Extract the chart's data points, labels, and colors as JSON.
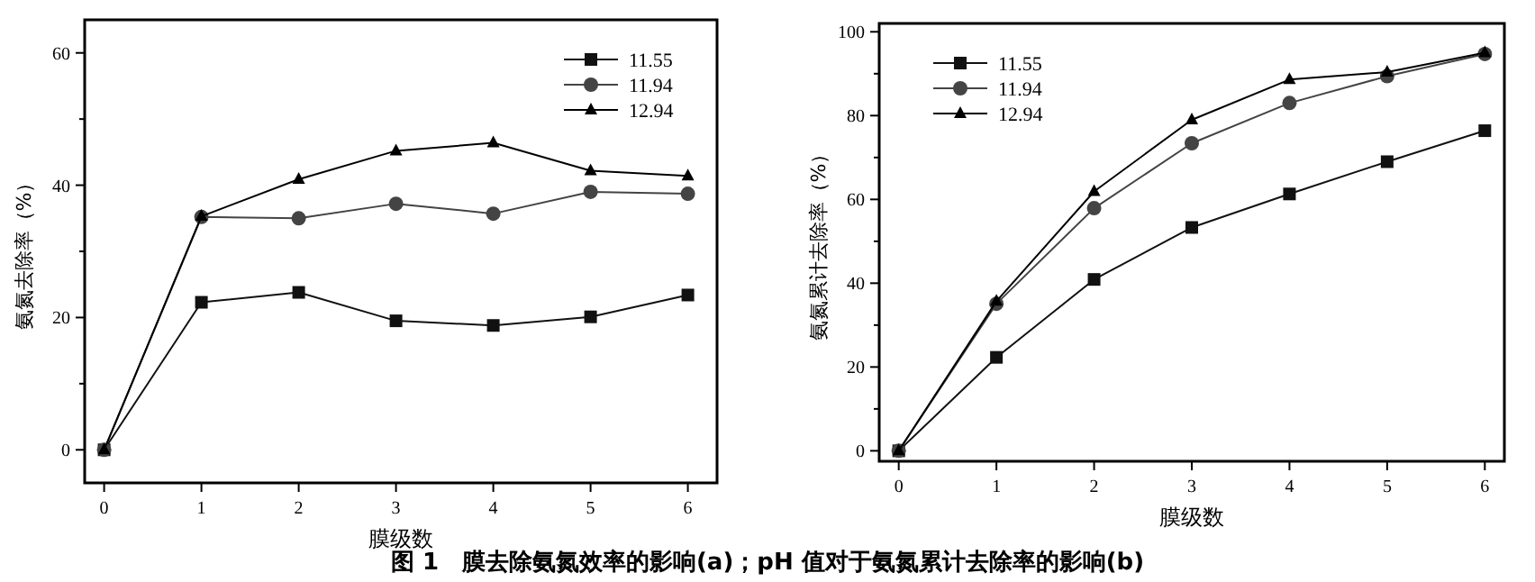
{
  "chart_data": [
    {
      "type": "line",
      "xlabel": "膜级数",
      "ylabel": "氨氮去除率（%）",
      "x": [
        0,
        1,
        2,
        3,
        4,
        5,
        6
      ],
      "xlim": [
        -0.2,
        6.3
      ],
      "xticks": [
        0,
        1,
        2,
        3,
        4,
        5,
        6
      ],
      "ylim": [
        -5,
        65
      ],
      "yticks": [
        0,
        {
          "value": 10,
          "label": null
        },
        20,
        {
          "value": 30,
          "label": null
        },
        40,
        {
          "value": 50,
          "label": null
        },
        60
      ],
      "legend": "top right",
      "annotations": [
        "图 1　膜去除氨氮效率的影响(a)；pH 值对于氨氮累计去除率的影响(b)"
      ],
      "series": [
        {
          "name": "11.55",
          "color": "#111111",
          "marker": "square",
          "values": [
            0,
            22.3,
            23.8,
            19.5,
            18.8,
            20.1,
            23.4
          ]
        },
        {
          "name": "11.94",
          "color": "#444444",
          "marker": "circle",
          "values": [
            0,
            35.2,
            35.0,
            37.2,
            35.7,
            39.0,
            38.7
          ]
        },
        {
          "name": "12.94",
          "color": "#000000",
          "marker": "triangle",
          "values": [
            0,
            35.3,
            40.9,
            45.2,
            46.4,
            42.2,
            41.4
          ]
        }
      ]
    },
    {
      "type": "line",
      "xlabel": "膜级数",
      "ylabel": "氨氮累计去除率（%）",
      "x": [
        0,
        1,
        2,
        3,
        4,
        5,
        6
      ],
      "xlim": [
        -0.2,
        6.2
      ],
      "xticks": [
        0,
        1,
        2,
        3,
        4,
        5,
        6
      ],
      "ylim": [
        -2.5,
        102
      ],
      "yticks": [
        0,
        {
          "value": 10,
          "label": null
        },
        20,
        {
          "value": 30,
          "label": null
        },
        40,
        {
          "value": 50,
          "label": null
        },
        60,
        {
          "value": 70,
          "label": null
        },
        80,
        {
          "value": 90,
          "label": null
        },
        100
      ],
      "legend": "top left",
      "series": [
        {
          "name": "11.55",
          "color": "#111111",
          "marker": "square",
          "values": [
            0,
            22.3,
            40.9,
            53.3,
            61.3,
            69.0,
            76.4
          ]
        },
        {
          "name": "11.94",
          "color": "#444444",
          "marker": "circle",
          "values": [
            0,
            35.1,
            57.9,
            73.4,
            83.0,
            89.4,
            94.7
          ]
        },
        {
          "name": "12.94",
          "color": "#000000",
          "marker": "triangle",
          "values": [
            0,
            35.7,
            61.9,
            79.0,
            88.6,
            90.4,
            95.0
          ]
        }
      ]
    }
  ]
}
